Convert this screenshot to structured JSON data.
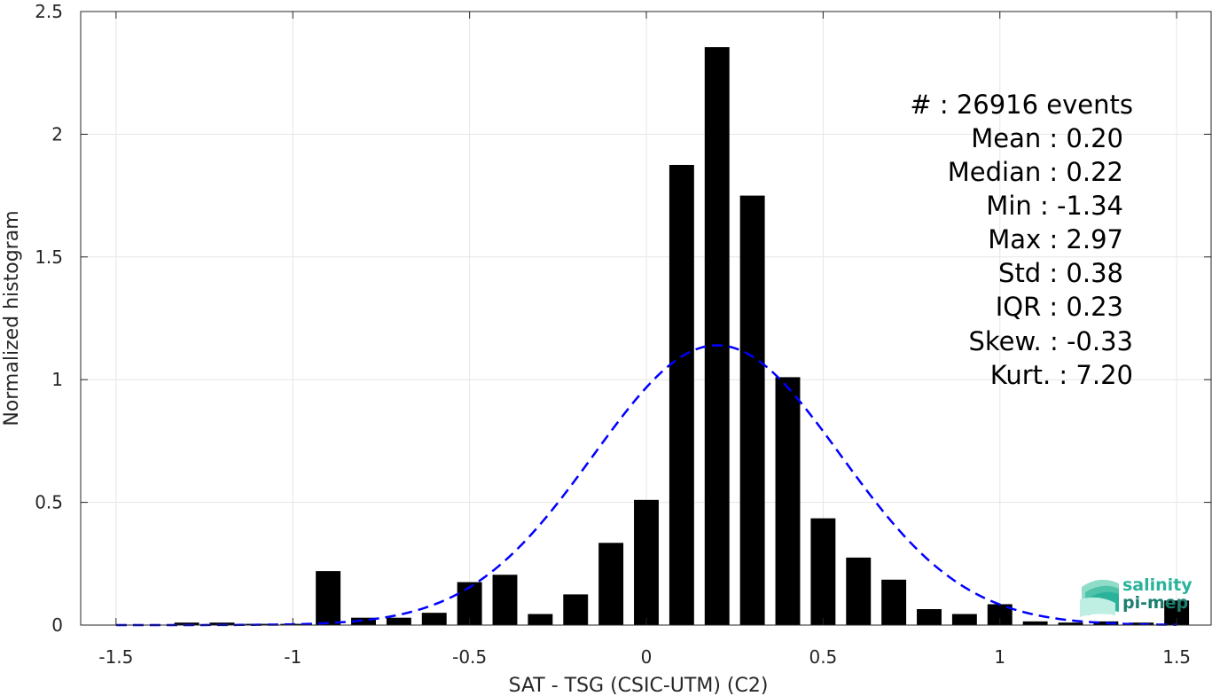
{
  "chart_data": {
    "type": "bar",
    "xlabel": "SAT - TSG (CSIC-UTM) (C2)",
    "ylabel": "Normalized histogram",
    "xlim": [
      -1.6,
      1.6
    ],
    "ylim": [
      0,
      2.5
    ],
    "xticks": [
      -1.5,
      -1,
      -0.5,
      0,
      0.5,
      1,
      1.5
    ],
    "xtick_labels": [
      "-1.5",
      "-1",
      "-0.5",
      "0",
      "0.5",
      "1",
      "1.5"
    ],
    "yticks": [
      0,
      0.5,
      1,
      1.5,
      2,
      2.5
    ],
    "ytick_labels": [
      "0",
      "0.5",
      "1",
      "1.5",
      "2",
      "2.5"
    ],
    "grid": true,
    "bin_width": 0.1,
    "bins": {
      "x": [
        -1.5,
        -1.4,
        -1.3,
        -1.2,
        -1.1,
        -1.0,
        -0.9,
        -0.8,
        -0.7,
        -0.6,
        -0.5,
        -0.4,
        -0.3,
        -0.2,
        -0.1,
        0.0,
        0.1,
        0.2,
        0.3,
        0.4,
        0.5,
        0.6,
        0.7,
        0.8,
        0.9,
        1.0,
        1.1,
        1.2,
        1.3,
        1.4,
        1.5
      ],
      "values": [
        0.0,
        0.0,
        0.01,
        0.01,
        0.005,
        0.005,
        0.22,
        0.03,
        0.03,
        0.05,
        0.175,
        0.205,
        0.045,
        0.125,
        0.335,
        0.51,
        1.875,
        2.355,
        1.75,
        1.01,
        0.435,
        0.275,
        0.185,
        0.065,
        0.045,
        0.085,
        0.015,
        0.01,
        0.015,
        0.01,
        0.1
      ]
    },
    "fit_curve": {
      "type": "gaussian",
      "mean": 0.2,
      "std": 0.35,
      "peak": 1.14,
      "style": "dashed",
      "color": "#0000ff"
    },
    "annotations": [
      "#  : 26916 events",
      "Mean : 0.20",
      "Median : 0.22",
      "Min : -1.34",
      "Max : 2.97",
      "Std : 0.38",
      "IQR : 0.23",
      "Skew. : -0.33",
      "Kurt. : 7.20"
    ]
  },
  "logo": {
    "line1": "salinity",
    "line2": "pi-mep"
  },
  "colors": {
    "bars": "#000000",
    "fit": "#0000ff",
    "grid": "#e6e6e6",
    "axis": "#262626",
    "logo": "#2ab39a"
  }
}
